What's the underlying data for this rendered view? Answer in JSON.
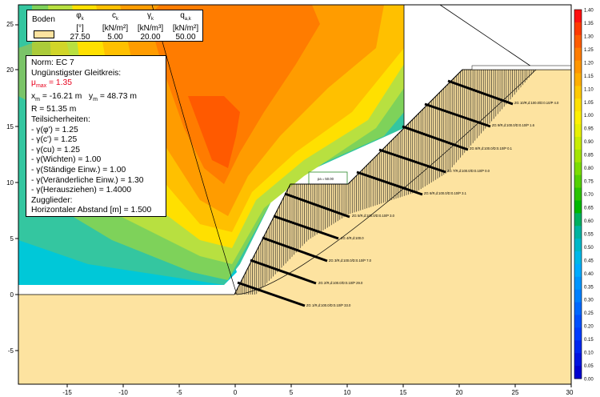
{
  "soil_table": {
    "title": "Boden",
    "columns": [
      {
        "symbol": "φ",
        "sub": "k",
        "unit": "[°]",
        "value": "27.50"
      },
      {
        "symbol": "c",
        "sub": "k",
        "unit": "[kN/m²]",
        "value": "5.00"
      },
      {
        "symbol": "γ",
        "sub": "k",
        "unit": "[kN/m³]",
        "value": "20.00"
      },
      {
        "symbol": "q",
        "sub": "a,k",
        "unit": "[kN/m²]",
        "value": "50.00"
      }
    ],
    "swatch_color": "#fde3a0"
  },
  "info": {
    "norm": "Norm:  EC 7",
    "circle_title": "Ungünstigster Gleitkreis:",
    "mu_label": "μ",
    "mu_sub": "max",
    "mu_value": " = 1.35",
    "xm_label": "x",
    "xm_sub": "m",
    "xm_value": " = -16.21 m",
    "ym_label": "y",
    "ym_sub": "m",
    "ym_value": " = 48.73 m",
    "radius": "R = 51.35 m",
    "safety_title": "Teilsicherheiten:",
    "factors": [
      " - γ(φ') = 1.25",
      " - γ(c') = 1.25",
      " - γ(cu) = 1.25",
      " - γ(Wichten) = 1.00",
      " - γ(Ständige Einw.) = 1.00",
      " - γ(Veränderliche Einw.) = 1.30",
      " - γ(Herausziehen) = 1.4000"
    ],
    "tendons_title": "Zugglieder:",
    "spacing": "Horizontaler Abstand [m] = 1.500"
  },
  "axes": {
    "x_ticks": [
      "-15",
      "-10",
      "-5",
      "0",
      "5",
      "10",
      "15",
      "20",
      "25",
      "30"
    ],
    "y_ticks": [
      "25",
      "20",
      "15",
      "10",
      "5",
      "0",
      "-5"
    ]
  },
  "legend_scale": {
    "labels": [
      "1.40",
      "1.35",
      "1.30",
      "1.25",
      "1.20",
      "1.15",
      "1.10",
      "1.05",
      "1.00",
      "0.95",
      "0.90",
      "0.85",
      "0.80",
      "0.75",
      "0.70",
      "0.65",
      "0.60",
      "0.55",
      "0.50",
      "0.45",
      "0.40",
      "0.35",
      "0.30",
      "0.25",
      "0.20",
      "0.15",
      "0.10",
      "0.05",
      "0.00"
    ],
    "colors": [
      "#ff1010",
      "#ff3a00",
      "#ff5c00",
      "#ff7c00",
      "#ff9600",
      "#ffae00",
      "#ffc800",
      "#ffe000",
      "#fff000",
      "#e8f000",
      "#c8ec00",
      "#a4e400",
      "#7cdc00",
      "#54d000",
      "#2cc400",
      "#00b800",
      "#00b060",
      "#00b4a0",
      "#00b8c8",
      "#00b8e8",
      "#00acff",
      "#0096ff",
      "#0080ff",
      "#0068ff",
      "#0050ff",
      "#003cff",
      "#0028f0",
      "#0014e0",
      "#0000d0"
    ]
  },
  "anchor_labels": [
    "ZG 1/R,d:100.0/D:0.10/P 33.0",
    "ZG 2/R,d:100.0/D:0.10/P 29.0",
    "ZG 3/R,d:100.0/D:0.10/P 7.0",
    "ZG 4/R,d:100.0",
    "ZG 5/R,d:100.0/D:0.10/P 3.0",
    "ZG 6/R,d:100.0/D:0.10/P 3.1",
    "ZG 7/R,d:100.0/D:0.10/P 0.0",
    "ZG 8/R,d:100.0/D:0.10/P 0.1",
    "ZG 9/R,d:100.0/D:0.10/P 1.6",
    "ZG 10/R,d:100.0/D:0.10/P 4.0"
  ],
  "berm_label": "pa = 50.00",
  "colors": {
    "soil": "#fde3a0",
    "hatch": "#1a1a1a",
    "anchor": "#000000",
    "frame": "#000000",
    "highlight": "#e8001c"
  }
}
